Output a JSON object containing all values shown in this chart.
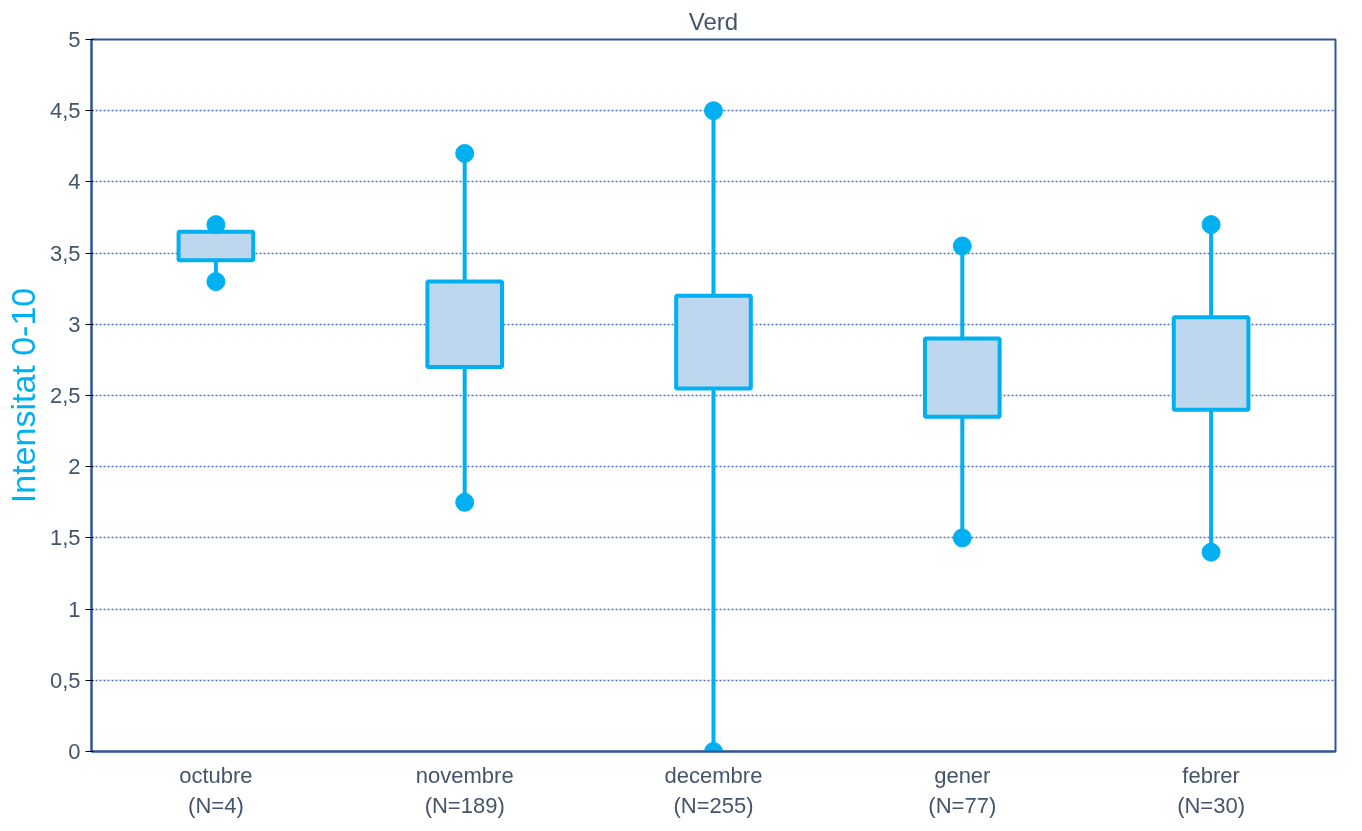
{
  "chart_data": {
    "type": "box",
    "title": "Verd",
    "ylabel": "Intensitat 0-10",
    "categories": [
      "octubre\n(N=4)",
      "novembre\n(N=189)",
      "decembre\n(N=255)",
      "gener\n(N=77)",
      "febrer\n(N=30)"
    ],
    "boxes": [
      {
        "low": 3.3,
        "q1": 3.45,
        "q3": 3.65,
        "high": 3.7
      },
      {
        "low": 1.75,
        "q1": 2.7,
        "q3": 3.3,
        "high": 4.2
      },
      {
        "low": 0,
        "q1": 2.55,
        "q3": 3.2,
        "high": 4.5
      },
      {
        "low": 1.5,
        "q1": 2.35,
        "q3": 2.9,
        "high": 3.55
      },
      {
        "low": 1.4,
        "q1": 2.4,
        "q3": 3.05,
        "high": 3.7
      }
    ],
    "color": "#00b0f0",
    "ylim": [
      0,
      5
    ],
    "yticks": [
      0,
      {
        "value": 0.5,
        "label": "0,5"
      },
      1,
      {
        "value": 1.5,
        "label": "1,5"
      },
      2,
      {
        "value": 2.5,
        "label": "2,5"
      },
      3,
      {
        "value": 3.5,
        "label": "3,5"
      },
      4,
      {
        "value": 4.5,
        "label": "4,5"
      },
      5
    ],
    "series": [
      {
        "type": "scatter",
        "x": [
          "octubre\n(N=4)",
          "novembre\n(N=189)",
          "decembre\n(N=255)",
          "gener\n(N=77)",
          "febrer\n(N=30)"
        ],
        "values": [
          3.7,
          4.2,
          4.5,
          3.55,
          3.7
        ]
      },
      {
        "type": "scatter",
        "x": [
          "octubre\n(N=4)",
          "novembre\n(N=189)",
          "decembre\n(N=255)",
          "gener\n(N=77)",
          "febrer\n(N=30)"
        ],
        "values": [
          3.3,
          1.75,
          0,
          1.5,
          1.4
        ]
      }
    ],
    "grid": "y",
    "marker": "circle"
  }
}
